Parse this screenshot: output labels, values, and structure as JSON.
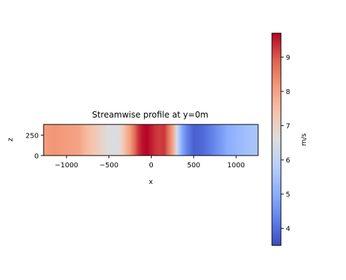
{
  "chart_data": {
    "type": "heatmap",
    "title": "Streamwise profile at y=0m",
    "xlabel": "x",
    "ylabel": "z",
    "xlim": [
      -1270,
      1260
    ],
    "ylim": [
      0,
      380
    ],
    "xticks": [
      -1000,
      -500,
      0,
      500,
      1000
    ],
    "xtick_labels": [
      "−1000",
      "−500",
      "0",
      "500",
      "1000"
    ],
    "yticks": [
      0,
      250
    ],
    "ytick_labels": [
      "0",
      "250"
    ],
    "colormap": "coolwarm",
    "colorbar": {
      "label": "m/s",
      "min": 3.5,
      "max": 9.7,
      "ticks": [
        4,
        5,
        6,
        7,
        8,
        9
      ],
      "tick_labels": [
        "4",
        "5",
        "6",
        "7",
        "8",
        "9"
      ]
    },
    "profile": {
      "x": [
        -1270,
        -1150,
        -1000,
        -850,
        -800,
        -700,
        -600,
        -500,
        -430,
        -380,
        -330,
        -300,
        -250,
        -200,
        -150,
        -100,
        -50,
        0,
        50,
        100,
        150,
        200,
        250,
        300,
        330,
        360,
        400,
        450,
        500,
        600,
        700,
        800,
        900,
        1000,
        1100,
        1260
      ],
      "speed": [
        8.1,
        8.2,
        8.1,
        8.0,
        7.7,
        7.4,
        7.0,
        6.6,
        6.5,
        6.7,
        7.2,
        7.6,
        8.1,
        8.7,
        9.3,
        9.6,
        9.7,
        9.5,
        9.3,
        9.2,
        9.3,
        8.7,
        8.0,
        6.5,
        5.6,
        5.0,
        4.5,
        4.1,
        3.8,
        3.9,
        4.2,
        4.6,
        5.0,
        5.2,
        5.4,
        5.6
      ]
    }
  }
}
